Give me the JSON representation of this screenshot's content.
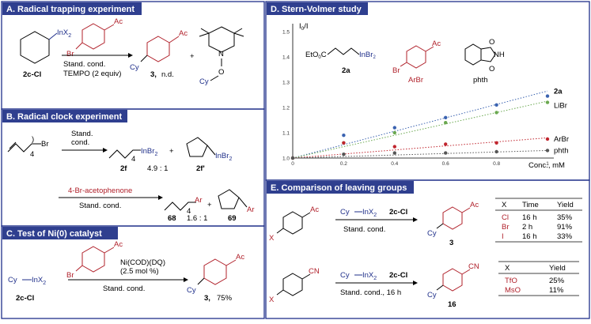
{
  "panels": {
    "A": {
      "header": "A. Radical trapping experiment",
      "reagent": "InX",
      "reagent_sub": "2",
      "bromide_label": "Br",
      "ac_label": "Ac",
      "label_2ccl": "2c-Cl",
      "cond1": "Stand. cond.",
      "cond2": "TEMPO (2 equiv)",
      "product_label": "3,",
      "product_note": "n.d.",
      "plus": "+",
      "cy": "Cy",
      "tempo_n": "N",
      "tempo_o": "O",
      "tempo_cy": "Cy"
    },
    "B": {
      "header": "B. Radical clock experiment",
      "br": "Br",
      "sub4": "4",
      "cond_a": "Stand.",
      "cond_b": "cond.",
      "inbr2": "InBr",
      "sub2": "2",
      "label_2f": "2f",
      "ratio1": "4.9 : 1",
      "label_2fp": "2f'",
      "reagent2": "4-Br-acetophenone",
      "cond2": "Stand. cond.",
      "ar": "Ar",
      "label_68": "68",
      "ratio2": "1.6 : 1",
      "label_69": "69",
      "plus": "+"
    },
    "C": {
      "header": "C. Test of Ni(0) catalyst",
      "reagent": "Cy",
      "inx": "InX",
      "sub2": "2",
      "label": "2c-Cl",
      "br": "Br",
      "ac": "Ac",
      "cat1": "Ni(COD)(DQ)",
      "cat2": "(2.5 mol %)",
      "cond": "Stand. cond.",
      "cy": "Cy",
      "product": "3,",
      "yield": "75%"
    },
    "D": {
      "header": "D. Stern-Volmer study",
      "ylabel": "I",
      "ylabel_sub": "0",
      "ylabel_tail": "/I",
      "xlabel": "Conc., mM",
      "mol_2a_label": "2a",
      "mol_2a_formula": "EtO",
      "mol_2a_formula2": "C",
      "mol_2a_inbr": "InBr",
      "mol_arbr_label": "ArBr",
      "mol_arbr_br": "Br",
      "mol_arbr_ac": "Ac",
      "mol_phth_label": "phth",
      "mol_phth_nh": "NH",
      "o": "O"
    },
    "E": {
      "header": "E. Comparison of leaving groups",
      "ac": "Ac",
      "x": "X",
      "reagent": "Cy",
      "inx": "InX",
      "sub2": "2",
      "label": "2c-Cl",
      "cond1": "Stand. cond.",
      "product1": "3",
      "cy": "Cy",
      "cn": "CN",
      "cond2": "Stand. cond., 16 h",
      "product2": "16",
      "table1": {
        "headers": [
          "X",
          "Time",
          "Yield"
        ],
        "rows": [
          [
            "Cl",
            "16 h",
            "35%"
          ],
          [
            "Br",
            "2 h",
            "91%"
          ],
          [
            "I",
            "16 h",
            "33%"
          ]
        ]
      },
      "table2": {
        "headers": [
          "X",
          "Yield"
        ],
        "rows": [
          [
            "TfO",
            "25%"
          ],
          [
            "MsO",
            "11%"
          ]
        ]
      }
    }
  },
  "chart_data": {
    "type": "scatter",
    "title": "",
    "xlabel": "Conc., mM",
    "ylabel": "I0/I",
    "xlim": [
      0,
      1
    ],
    "ylim": [
      1.0,
      1.5
    ],
    "x_ticks": [
      "0",
      "0.2",
      "0.4",
      "0.6",
      "0.8",
      "1"
    ],
    "y_ticks": [
      "1.0",
      "1.1",
      "1.2",
      "1.3",
      "1.4",
      "1.5"
    ],
    "grid": false,
    "series": [
      {
        "name": "2a",
        "color": "#3a62b0",
        "x": [
          0,
          0.2,
          0.4,
          0.6,
          0.8,
          1
        ],
        "y": [
          1.0,
          1.09,
          1.12,
          1.16,
          1.21,
          1.245
        ],
        "fit": [
          1.0,
          1.265
        ]
      },
      {
        "name": "LiBr",
        "color": "#6aa84f",
        "x": [
          0,
          0.2,
          0.4,
          0.6,
          0.8,
          1
        ],
        "y": [
          1.0,
          1.06,
          1.1,
          1.14,
          1.18,
          1.22
        ],
        "fit": [
          1.0,
          1.225
        ]
      },
      {
        "name": "ArBr",
        "color": "#c0252e",
        "x": [
          0,
          0.2,
          0.4,
          0.6,
          0.8,
          1
        ],
        "y": [
          1.0,
          1.06,
          1.045,
          1.055,
          1.06,
          1.075
        ],
        "fit": [
          1.0,
          1.08
        ]
      },
      {
        "name": "phth",
        "color": "#555555",
        "x": [
          0,
          0.2,
          0.4,
          0.6,
          0.8,
          1
        ],
        "y": [
          1.0,
          1.015,
          1.02,
          1.02,
          1.025,
          1.03
        ],
        "fit": [
          1.0,
          1.03
        ]
      }
    ]
  }
}
